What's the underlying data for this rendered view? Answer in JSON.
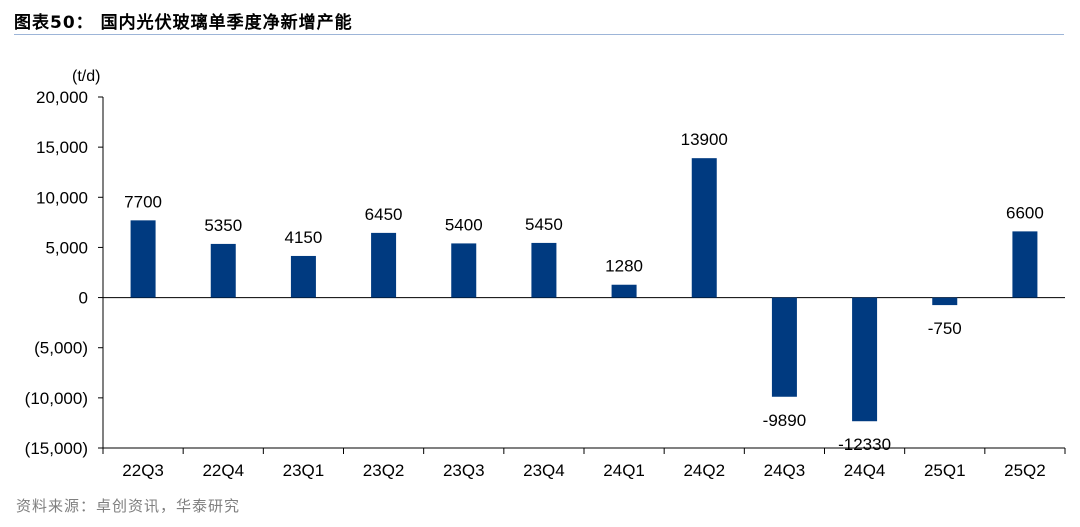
{
  "title": "图表50： 国内光伏玻璃单季度净新增产能",
  "source": "资料来源：卓创资讯，华泰研究",
  "chart_data": {
    "type": "bar",
    "unit": "(t/d)",
    "categories": [
      "22Q3",
      "22Q4",
      "23Q1",
      "23Q2",
      "23Q3",
      "23Q4",
      "24Q1",
      "24Q2",
      "24Q3",
      "24Q4",
      "25Q1",
      "25Q2"
    ],
    "values": [
      7700,
      5350,
      4150,
      6450,
      5400,
      5450,
      1280,
      13900,
      -9890,
      -12330,
      -750,
      6600
    ],
    "data_labels": [
      "7700",
      "5350",
      "4150",
      "6450",
      "5400",
      "5450",
      "1280",
      "13900",
      "-9890",
      "-12330",
      "-750",
      "6600"
    ],
    "ylim": [
      -15000,
      20000
    ],
    "yticks": [
      20000,
      15000,
      10000,
      5000,
      0,
      -5000,
      -10000,
      -15000
    ],
    "ytick_labels": [
      "20,000",
      "15,000",
      "10,000",
      "5,000",
      "0",
      "(5,000)",
      "(10,000)",
      "(15,000)"
    ],
    "bar_color": "#003A80",
    "grid": false,
    "legend": "none"
  }
}
